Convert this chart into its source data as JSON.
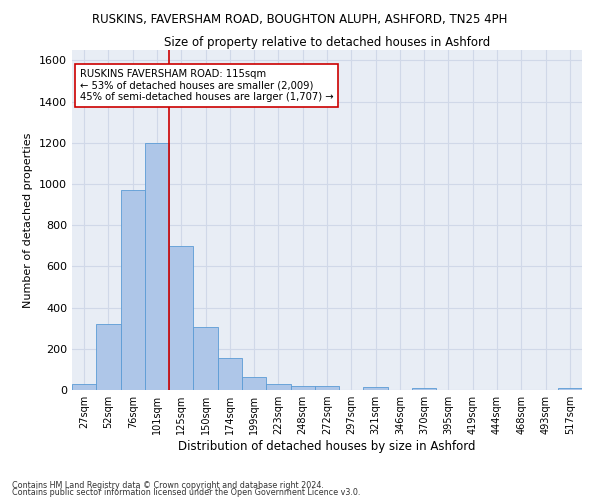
{
  "title": "RUSKINS, FAVERSHAM ROAD, BOUGHTON ALUPH, ASHFORD, TN25 4PH",
  "subtitle": "Size of property relative to detached houses in Ashford",
  "xlabel": "Distribution of detached houses by size in Ashford",
  "ylabel": "Number of detached properties",
  "categories": [
    "27sqm",
    "52sqm",
    "76sqm",
    "101sqm",
    "125sqm",
    "150sqm",
    "174sqm",
    "199sqm",
    "223sqm",
    "248sqm",
    "272sqm",
    "297sqm",
    "321sqm",
    "346sqm",
    "370sqm",
    "395sqm",
    "419sqm",
    "444sqm",
    "468sqm",
    "493sqm",
    "517sqm"
  ],
  "values": [
    28,
    320,
    970,
    1200,
    700,
    305,
    155,
    65,
    30,
    20,
    18,
    0,
    15,
    0,
    12,
    0,
    0,
    0,
    0,
    0,
    12
  ],
  "bar_color": "#aec6e8",
  "bar_edge_color": "#5b9bd5",
  "vline_color": "#cc0000",
  "annotation_text": "RUSKINS FAVERSHAM ROAD: 115sqm\n← 53% of detached houses are smaller (2,009)\n45% of semi-detached houses are larger (1,707) →",
  "annotation_box_color": "#ffffff",
  "annotation_box_edge": "#cc0000",
  "ylim": [
    0,
    1650
  ],
  "yticks": [
    0,
    200,
    400,
    600,
    800,
    1000,
    1200,
    1400,
    1600
  ],
  "grid_color": "#d0d8e8",
  "background_color": "#e8edf5",
  "footer_line1": "Contains HM Land Registry data © Crown copyright and database right 2024.",
  "footer_line2": "Contains public sector information licensed under the Open Government Licence v3.0."
}
